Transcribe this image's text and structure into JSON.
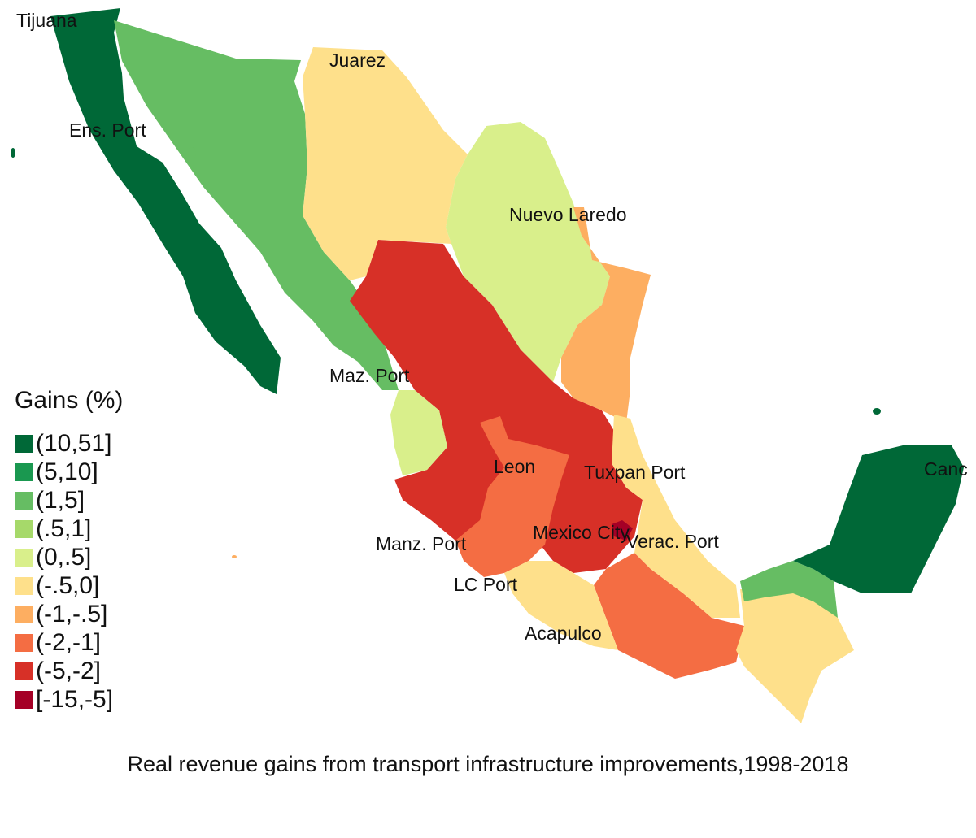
{
  "legend": {
    "title": "Gains (%)",
    "items": [
      {
        "label": "(10,51]",
        "color": "#006837"
      },
      {
        "label": "(5,10]",
        "color": "#1a9850"
      },
      {
        "label": "(1,5]",
        "color": "#66bd63"
      },
      {
        "label": "(.5,1]",
        "color": "#a6d96a"
      },
      {
        "label": "(0,.5]",
        "color": "#d9ef8b"
      },
      {
        "label": "(-.5,0]",
        "color": "#fee08b"
      },
      {
        "label": "(-1,-.5]",
        "color": "#fdae61"
      },
      {
        "label": "(-2,-1]",
        "color": "#f46d43"
      },
      {
        "label": "(-5,-2]",
        "color": "#d73027"
      },
      {
        "label": "[-15,-5]",
        "color": "#a50026"
      }
    ]
  },
  "cities": {
    "tijuana": "Tijuana",
    "juarez": "Juarez",
    "ens_port": "Ens. Port",
    "nuevo_laredo": "Nuevo Laredo",
    "maz_port": "Maz. Port",
    "leon": "Leon",
    "tuxpan_port": "Tuxpan Port",
    "mexico_city": "Mexico City",
    "verac_port": "Verac. Port",
    "manz_port": "Manz. Port",
    "lc_port": "LC Port",
    "acapulco": "Acapulco",
    "cancun": "Canc"
  },
  "caption": "Real revenue gains from transport infrastructure improvements,1998-2018"
}
